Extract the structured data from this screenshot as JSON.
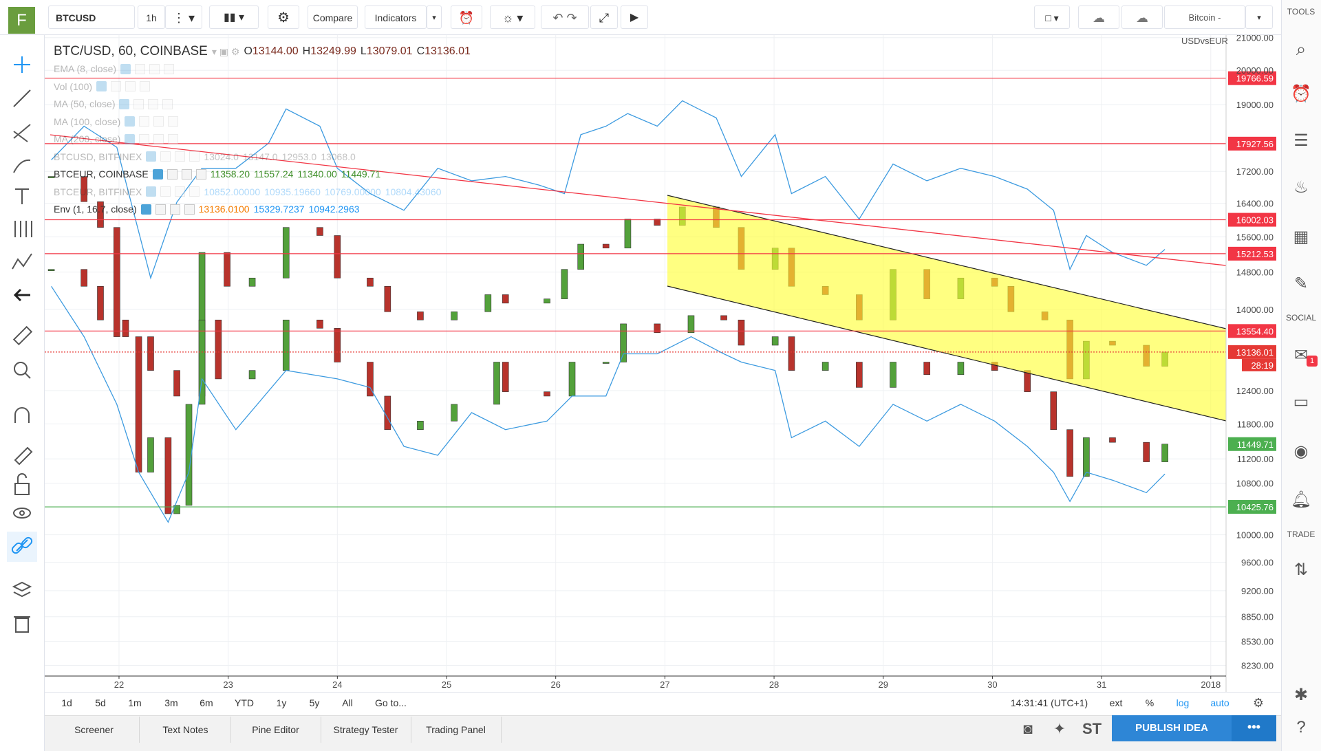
{
  "logo": "F",
  "toolbar": {
    "symbol": "BTCUSD",
    "interval": "1h",
    "compare": "Compare",
    "indicators": "Indicators",
    "layout_name": "Bitcoin - USDvsEUR"
  },
  "sidebar": {
    "tools": "TOOLS",
    "social": "SOCIAL",
    "trade": "TRADE",
    "badge": "1"
  },
  "legend": {
    "title": "BTC/USD, 60, COINBASE",
    "ohlc": [
      {
        "key": "O",
        "value": "13144.00"
      },
      {
        "key": "H",
        "value": "13249.99"
      },
      {
        "key": "L",
        "value": "13079.01"
      },
      {
        "key": "C",
        "value": "13136.01"
      }
    ],
    "rows": [
      {
        "label": "EMA (8, close)",
        "faded": true,
        "values": [],
        "value_colors": []
      },
      {
        "label": "Vol (100)",
        "faded": true,
        "values": [],
        "value_colors": []
      },
      {
        "label": "MA (50, close)",
        "faded": true,
        "values": [],
        "value_colors": []
      },
      {
        "label": "MA (100, close)",
        "faded": true,
        "values": [],
        "value_colors": []
      },
      {
        "label": "MA (200, close)",
        "faded": true,
        "values": [],
        "value_colors": []
      },
      {
        "label": "BTCUSD, BITFINEX",
        "faded": true,
        "values": [
          "13024.0",
          "13147.0",
          "12953.0",
          "13068.0"
        ],
        "value_colors": [
          "#555",
          "#555",
          "#555",
          "#555"
        ]
      },
      {
        "label": "BTCEUR, COINBASE",
        "faded": false,
        "values": [
          "11358.20",
          "11557.24",
          "11340.00",
          "11449.71"
        ],
        "value_colors": [
          "#3f8f2a",
          "#3f8f2a",
          "#3f8f2a",
          "#3f8f2a"
        ]
      },
      {
        "label": "BTCEUR, BITFINEX",
        "faded": true,
        "values": [
          "10852.00000",
          "10935.19660",
          "10769.00000",
          "10804.43060"
        ],
        "value_colors": [
          "#2196f3",
          "#2196f3",
          "#2196f3",
          "#2196f3"
        ]
      },
      {
        "label": "Env (1, 16.7, close)",
        "faded": false,
        "values": [
          "13136.0100",
          "15329.7237",
          "10942.2963"
        ],
        "value_colors": [
          "#f57c00",
          "#2196f3",
          "#2196f3"
        ]
      }
    ]
  },
  "chart_data": {
    "type": "candlestick",
    "log_scale": true,
    "grid": true,
    "xlim": [
      21.37,
      32.14
    ],
    "xticks": [
      22,
      23,
      24,
      25,
      26,
      27,
      28,
      29,
      30,
      31,
      {
        "value": 32,
        "label": "2018"
      }
    ],
    "ylim": [
      8100,
      21080
    ],
    "yticks": [
      {
        "value": 21000,
        "label": "21000.00"
      },
      {
        "value": 20000,
        "label": "20000.00"
      },
      {
        "value": 19000,
        "label": "19000.00"
      },
      {
        "value": 17200,
        "label": "17200.00"
      },
      {
        "value": 16400,
        "label": "16400.00"
      },
      {
        "value": 15600,
        "label": "15600.00"
      },
      {
        "value": 14800,
        "label": "14800.00"
      },
      {
        "value": 14000,
        "label": "14000.00"
      },
      {
        "value": 12400,
        "label": "12400.00"
      },
      {
        "value": 11800,
        "label": "11800.00"
      },
      {
        "value": 11200,
        "label": "11200.00"
      },
      {
        "value": 10800,
        "label": "10800.00"
      },
      {
        "value": 10000,
        "label": "10000.00"
      },
      {
        "value": 9600,
        "label": "9600.00"
      },
      {
        "value": 9200,
        "label": "9200.00"
      },
      {
        "value": 8850,
        "label": "8850.00"
      },
      {
        "value": 8530,
        "label": "8530.00"
      },
      {
        "value": 8230,
        "label": "8230.00"
      }
    ],
    "series": [
      {
        "style": "candles",
        "up_color": "#53a13b",
        "down_color": "#b8332c",
        "x": [
          21.38,
          21.68,
          21.83,
          22.06,
          22.29,
          22.53,
          22.76,
          22.99,
          23.22,
          23.53,
          23.84,
          24.0,
          24.3,
          24.46,
          24.76,
          25.07,
          25.38,
          25.54,
          25.92,
          26.08,
          26.23,
          26.46,
          26.66,
          26.93,
          27.16,
          27.47,
          27.7,
          28.01,
          28.16,
          28.47,
          28.78,
          29.09,
          29.4,
          29.71,
          30.02,
          30.17,
          30.48,
          30.71,
          30.86,
          31.1,
          31.41,
          31.58
        ],
        "values": [
          14860,
          14490,
          13780,
          13440,
          12780,
          12300,
          15240,
          14490,
          14670,
          15820,
          15630,
          14670,
          14490,
          13950,
          13780,
          13950,
          14310,
          14130,
          14220,
          14860,
          15430,
          15340,
          16020,
          15870,
          16310,
          15820,
          14860,
          15340,
          14490,
          14310,
          13780,
          14860,
          14220,
          14670,
          14490,
          13950,
          13780,
          12620,
          13350,
          13270,
          12860,
          13136.01
        ]
      },
      {
        "style": "candles",
        "up_color": "#53a13b",
        "down_color": "#b8332c",
        "x": [
          21.38,
          21.68,
          21.83,
          21.98,
          22.18,
          22.29,
          22.45,
          22.53,
          22.64,
          22.76,
          22.91,
          23.22,
          23.53,
          23.84,
          24.0,
          24.3,
          24.46,
          24.76,
          25.07,
          25.46,
          25.54,
          25.92,
          26.15,
          26.46,
          26.62,
          26.93,
          27.24,
          27.54,
          27.7,
          28.01,
          28.16,
          28.47,
          28.78,
          29.09,
          29.4,
          29.71,
          30.02,
          30.32,
          30.56,
          30.71,
          30.86,
          31.1,
          31.41,
          31.58
        ],
        "values": [
          17070,
          16440,
          15820,
          13440,
          10980,
          11560,
          10320,
          10450,
          12150,
          13780,
          12620,
          12780,
          13780,
          13610,
          12940,
          12300,
          11700,
          11850,
          12150,
          12940,
          12380,
          12300,
          12940,
          12940,
          13700,
          13520,
          13870,
          13780,
          13270,
          13440,
          12780,
          12940,
          12460,
          12940,
          12700,
          12940,
          12780,
          12380,
          11700,
          10910,
          11560,
          11480,
          11150,
          11449.71
        ]
      },
      {
        "style": "line",
        "color": "#3d9be0",
        "x": [
          21.38,
          21.68,
          21.98,
          22.29,
          22.53,
          22.76,
          23.07,
          23.37,
          23.53,
          23.84,
          24.0,
          24.3,
          24.61,
          24.92,
          25.23,
          25.54,
          25.85,
          26.08,
          26.23,
          26.46,
          26.66,
          26.93,
          27.16,
          27.47,
          27.7,
          28.01,
          28.16,
          28.47,
          28.78,
          29.09,
          29.4,
          29.71,
          30.02,
          30.32,
          30.56,
          30.71,
          30.86,
          31.1,
          31.41,
          31.58
        ],
        "values": [
          17500,
          18400,
          17830,
          14670,
          16430,
          17280,
          17280,
          17940,
          18880,
          18400,
          17280,
          16640,
          16230,
          17280,
          16960,
          17070,
          16850,
          16640,
          18170,
          18400,
          18750,
          18400,
          19110,
          18630,
          17070,
          18170,
          16640,
          17070,
          16020,
          17390,
          16960,
          17280,
          17070,
          16750,
          16230,
          14860,
          15630,
          15240,
          14950,
          15310
        ]
      },
      {
        "style": "line",
        "color": "#3d9be0",
        "x": [
          21.38,
          21.68,
          21.98,
          22.18,
          22.45,
          22.64,
          22.76,
          23.07,
          23.53,
          24.0,
          24.3,
          24.61,
          24.92,
          25.23,
          25.54,
          25.92,
          26.15,
          26.46,
          26.62,
          26.93,
          27.24,
          27.54,
          27.7,
          28.01,
          28.16,
          28.47,
          28.78,
          29.09,
          29.4,
          29.71,
          30.02,
          30.32,
          30.56,
          30.71,
          30.86,
          31.1,
          31.41,
          31.58
        ],
        "values": [
          14490,
          13440,
          12150,
          10980,
          10190,
          10980,
          12620,
          11700,
          12780,
          12620,
          12460,
          11410,
          11260,
          12000,
          11700,
          11850,
          12300,
          12300,
          13100,
          13100,
          13440,
          13100,
          12940,
          12780,
          11560,
          11850,
          11410,
          12150,
          11850,
          12150,
          11850,
          11410,
          10980,
          10510,
          10980,
          10850,
          10650,
          10950
        ]
      }
    ],
    "price_lines": [
      {
        "value": 19766.59,
        "label": "19766.59",
        "color": "#f23645",
        "line": "solid"
      },
      {
        "value": 17927.56,
        "label": "17927.56",
        "color": "#f23645",
        "line": "solid"
      },
      {
        "value": 16002.03,
        "label": "16002.03",
        "color": "#f23645",
        "line": "solid"
      },
      {
        "value": 15212.53,
        "label": "15212.53",
        "color": "#f23645",
        "line": "solid"
      },
      {
        "value": 13554.4,
        "label": "13554.40",
        "color": "#f23645",
        "line": "solid"
      },
      {
        "value": 13136.01,
        "label": "13136.01",
        "color": "#e53935",
        "line": "dotted"
      },
      {
        "value": 11449.71,
        "label": "11449.71",
        "color": "#4caf50",
        "line": "none"
      },
      {
        "value": 10425.76,
        "label": "10425.76",
        "color": "#4caf50",
        "line": "solid"
      }
    ],
    "countdown": "28:19"
  },
  "range_bar": {
    "ranges": [
      "1d",
      "5d",
      "1m",
      "3m",
      "6m",
      "YTD",
      "1y",
      "5y",
      "All"
    ],
    "goto": "Go to...",
    "time": "14:31:41 (UTC+1)",
    "options": [
      "ext",
      "%",
      "log",
      "auto"
    ]
  },
  "bottom_tabs": [
    "Screener",
    "Text Notes",
    "Pine Editor",
    "Strategy Tester",
    "Trading Panel"
  ],
  "publish": "PUBLISH IDEA"
}
